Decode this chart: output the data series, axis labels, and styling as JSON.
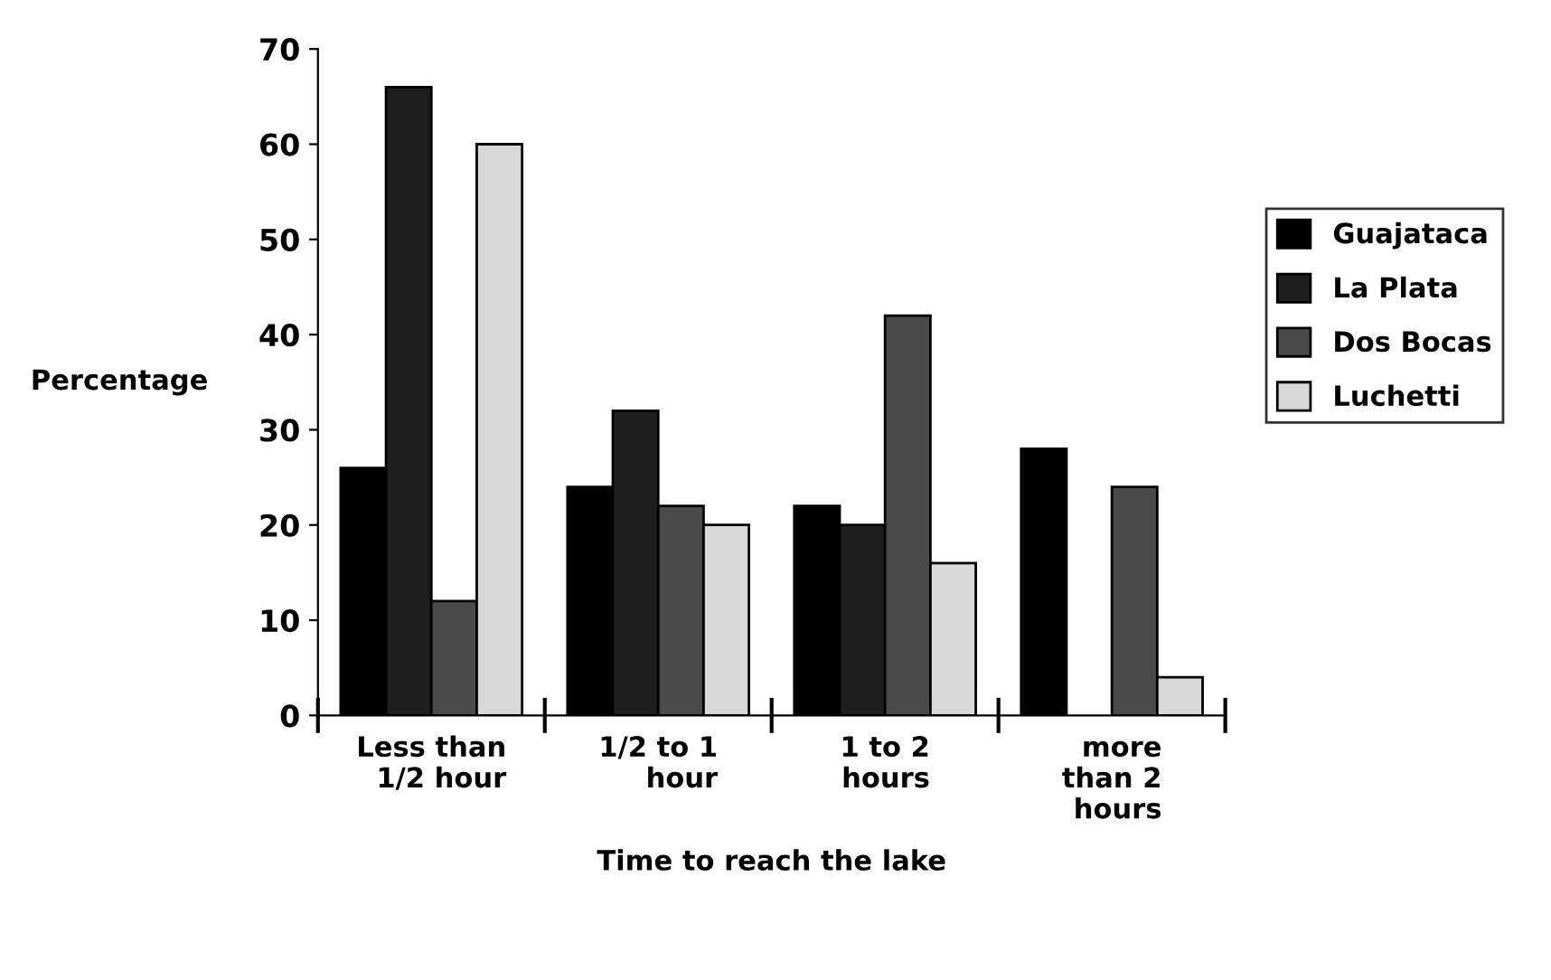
{
  "chart_data": {
    "type": "bar",
    "xlabel": "Time to reach the lake",
    "ylabel": "Percentage",
    "categories": [
      "Less than\n1/2 hour",
      "1/2 to 1\nhour",
      "1 to 2\nhours",
      "more\nthan 2\nhours"
    ],
    "series": [
      {
        "name": "Guajataca",
        "color": "#000000",
        "values": [
          26,
          24,
          22,
          28
        ]
      },
      {
        "name": "La Plata",
        "color": "#1e1e1e",
        "values": [
          66,
          32,
          20,
          null
        ]
      },
      {
        "name": "Dos Bocas",
        "color": "#4a4a4a",
        "values": [
          12,
          22,
          42,
          24
        ]
      },
      {
        "name": "Luchetti",
        "color": "#d8d8d8",
        "values": [
          60,
          20,
          16,
          4
        ]
      }
    ],
    "ylim": [
      0,
      70
    ],
    "yticks": [
      0,
      10,
      20,
      30,
      40,
      50,
      60,
      70
    ],
    "grid": false,
    "legend": "right"
  }
}
